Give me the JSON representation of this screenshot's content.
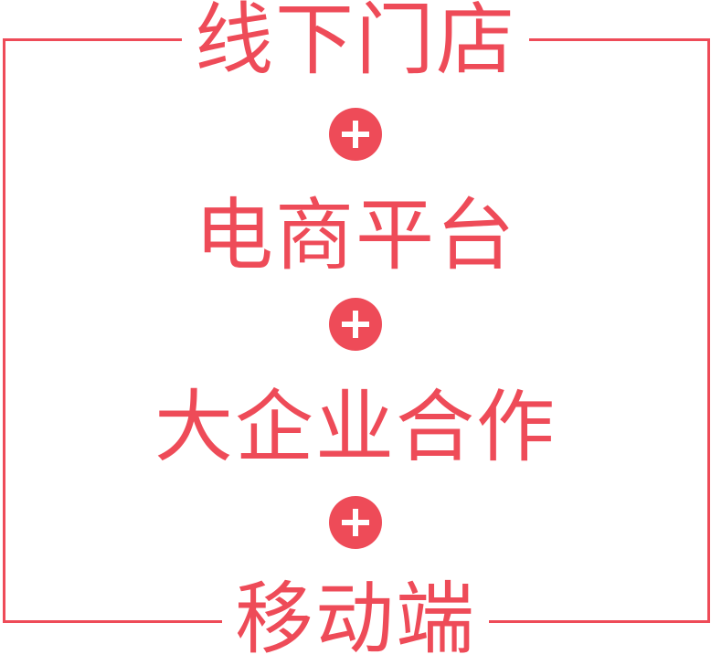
{
  "diagram": {
    "accent_color": "#ee4b58",
    "items": [
      {
        "label": "线下门店"
      },
      {
        "label": "电商平台"
      },
      {
        "label": "大企业合作"
      },
      {
        "label": "移动端"
      }
    ],
    "connector_icon": "plus-circle-icon"
  }
}
